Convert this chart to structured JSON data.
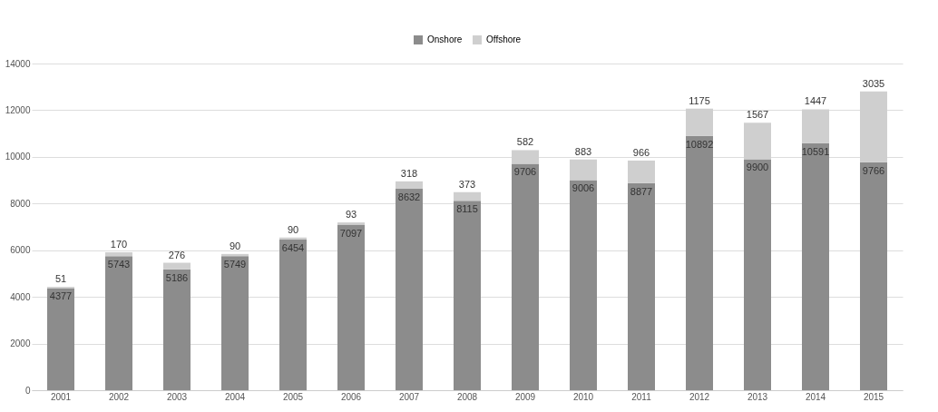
{
  "chart_data": {
    "type": "bar",
    "stacked": true,
    "categories": [
      "2001",
      "2002",
      "2003",
      "2004",
      "2005",
      "2006",
      "2007",
      "2008",
      "2009",
      "2010",
      "2011",
      "2012",
      "2013",
      "2014",
      "2015"
    ],
    "series": [
      {
        "name": "Onshore",
        "color": "#8c8c8c",
        "values": [
          4377,
          5743,
          5186,
          5749,
          6454,
          7097,
          8632,
          8115,
          9706,
          9006,
          8877,
          10892,
          9900,
          10591,
          9766
        ]
      },
      {
        "name": "Offshore",
        "color": "#cfcfcf",
        "values": [
          51,
          170,
          276,
          90,
          90,
          93,
          318,
          373,
          582,
          883,
          966,
          1175,
          1567,
          1447,
          3035
        ]
      }
    ],
    "ylim": [
      0,
      14000
    ],
    "yticks": [
      0,
      2000,
      4000,
      6000,
      8000,
      10000,
      12000,
      14000
    ],
    "grid": "y",
    "legend": "top",
    "data_labels": true
  }
}
